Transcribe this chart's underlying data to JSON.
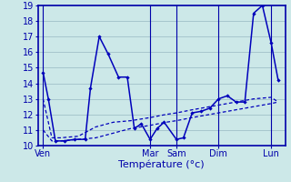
{
  "bg_color": "#cce8e8",
  "grid_color": "#a0c0c8",
  "line_color": "#0000bb",
  "spine_color": "#0000aa",
  "ylim": [
    10,
    19
  ],
  "yticks": [
    10,
    11,
    12,
    13,
    14,
    15,
    16,
    17,
    18,
    19
  ],
  "xlabel": "Température (°c)",
  "xlabel_fontsize": 8,
  "tick_fontsize": 7,
  "xtick_labels": [
    "Ven",
    "Mar",
    "Sam",
    "Dim",
    "Lun"
  ],
  "xtick_pos": [
    0,
    61,
    76,
    100,
    130
  ],
  "xlim": [
    -3,
    138
  ],
  "lx1": [
    0,
    3,
    7,
    12,
    18,
    24,
    27,
    32,
    37,
    43,
    48,
    52,
    56,
    61,
    65,
    69,
    76,
    80,
    85,
    90,
    95,
    100,
    105,
    110,
    115,
    120,
    125,
    130,
    134
  ],
  "ly1": [
    14.7,
    13.0,
    10.3,
    10.3,
    10.4,
    10.4,
    13.7,
    17.0,
    15.9,
    14.4,
    14.4,
    11.1,
    11.4,
    10.4,
    11.1,
    11.5,
    10.4,
    10.5,
    12.1,
    12.2,
    12.4,
    13.0,
    13.2,
    12.8,
    12.8,
    18.5,
    19.0,
    16.6,
    14.2
  ],
  "lx2": [
    0,
    5,
    10,
    20,
    30,
    40,
    50,
    61,
    70,
    76,
    85,
    95,
    100,
    110,
    120,
    130,
    134
  ],
  "ly2": [
    11.0,
    10.3,
    10.3,
    10.4,
    10.5,
    10.8,
    11.1,
    11.3,
    11.5,
    11.6,
    11.8,
    12.0,
    12.1,
    12.3,
    12.5,
    12.7,
    12.8
  ],
  "lx3": [
    0,
    5,
    10,
    20,
    30,
    40,
    50,
    61,
    70,
    76,
    85,
    95,
    100,
    110,
    120,
    130,
    134
  ],
  "ly3": [
    13.0,
    10.5,
    10.5,
    10.6,
    11.2,
    11.5,
    11.6,
    11.8,
    12.0,
    12.1,
    12.3,
    12.5,
    12.6,
    12.8,
    13.0,
    13.1,
    12.8
  ]
}
